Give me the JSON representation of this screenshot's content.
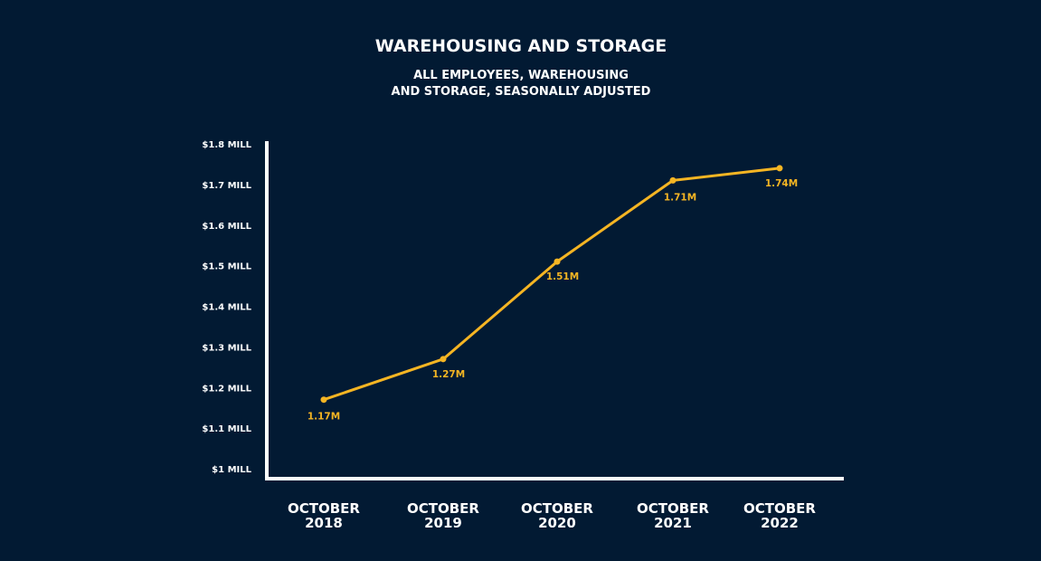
{
  "chart_data": {
    "type": "line",
    "title": "WAREHOUSING AND STORAGE",
    "subtitle": [
      "ALL EMPLOYEES, WAREHOUSING",
      "AND STORAGE, SEASONALLY ADJUSTED"
    ],
    "xlabel": "",
    "ylabel": "",
    "categories": [
      [
        "OCTOBER",
        "2018"
      ],
      [
        "OCTOBER",
        "2019"
      ],
      [
        "OCTOBER",
        "2020"
      ],
      [
        "OCTOBER",
        "2021"
      ],
      [
        "OCTOBER",
        "2022"
      ]
    ],
    "values": [
      1.17,
      1.27,
      1.51,
      1.71,
      1.74
    ],
    "data_labels": [
      "1.17M",
      "1.27M",
      "1.51M",
      "1.71M",
      "1.74M"
    ],
    "ylim": [
      1.0,
      1.8
    ],
    "yticks": [
      1.0,
      1.1,
      1.2,
      1.3,
      1.4,
      1.5,
      1.6,
      1.7,
      1.8
    ],
    "ytick_labels": [
      "$1 MILL",
      "$1.1 MILL",
      "$1.2 MILL",
      "$1.3 MILL",
      "$1.4 MILL",
      "$1.5 MILL",
      "$1.6 MILL",
      "$1.7 MILL",
      "$1.8 MILL"
    ],
    "grid": false,
    "legend": "none",
    "colors": {
      "background": "#021a33",
      "line": "#f5b523",
      "axis": "#ffffff",
      "text": "#ffffff"
    }
  }
}
